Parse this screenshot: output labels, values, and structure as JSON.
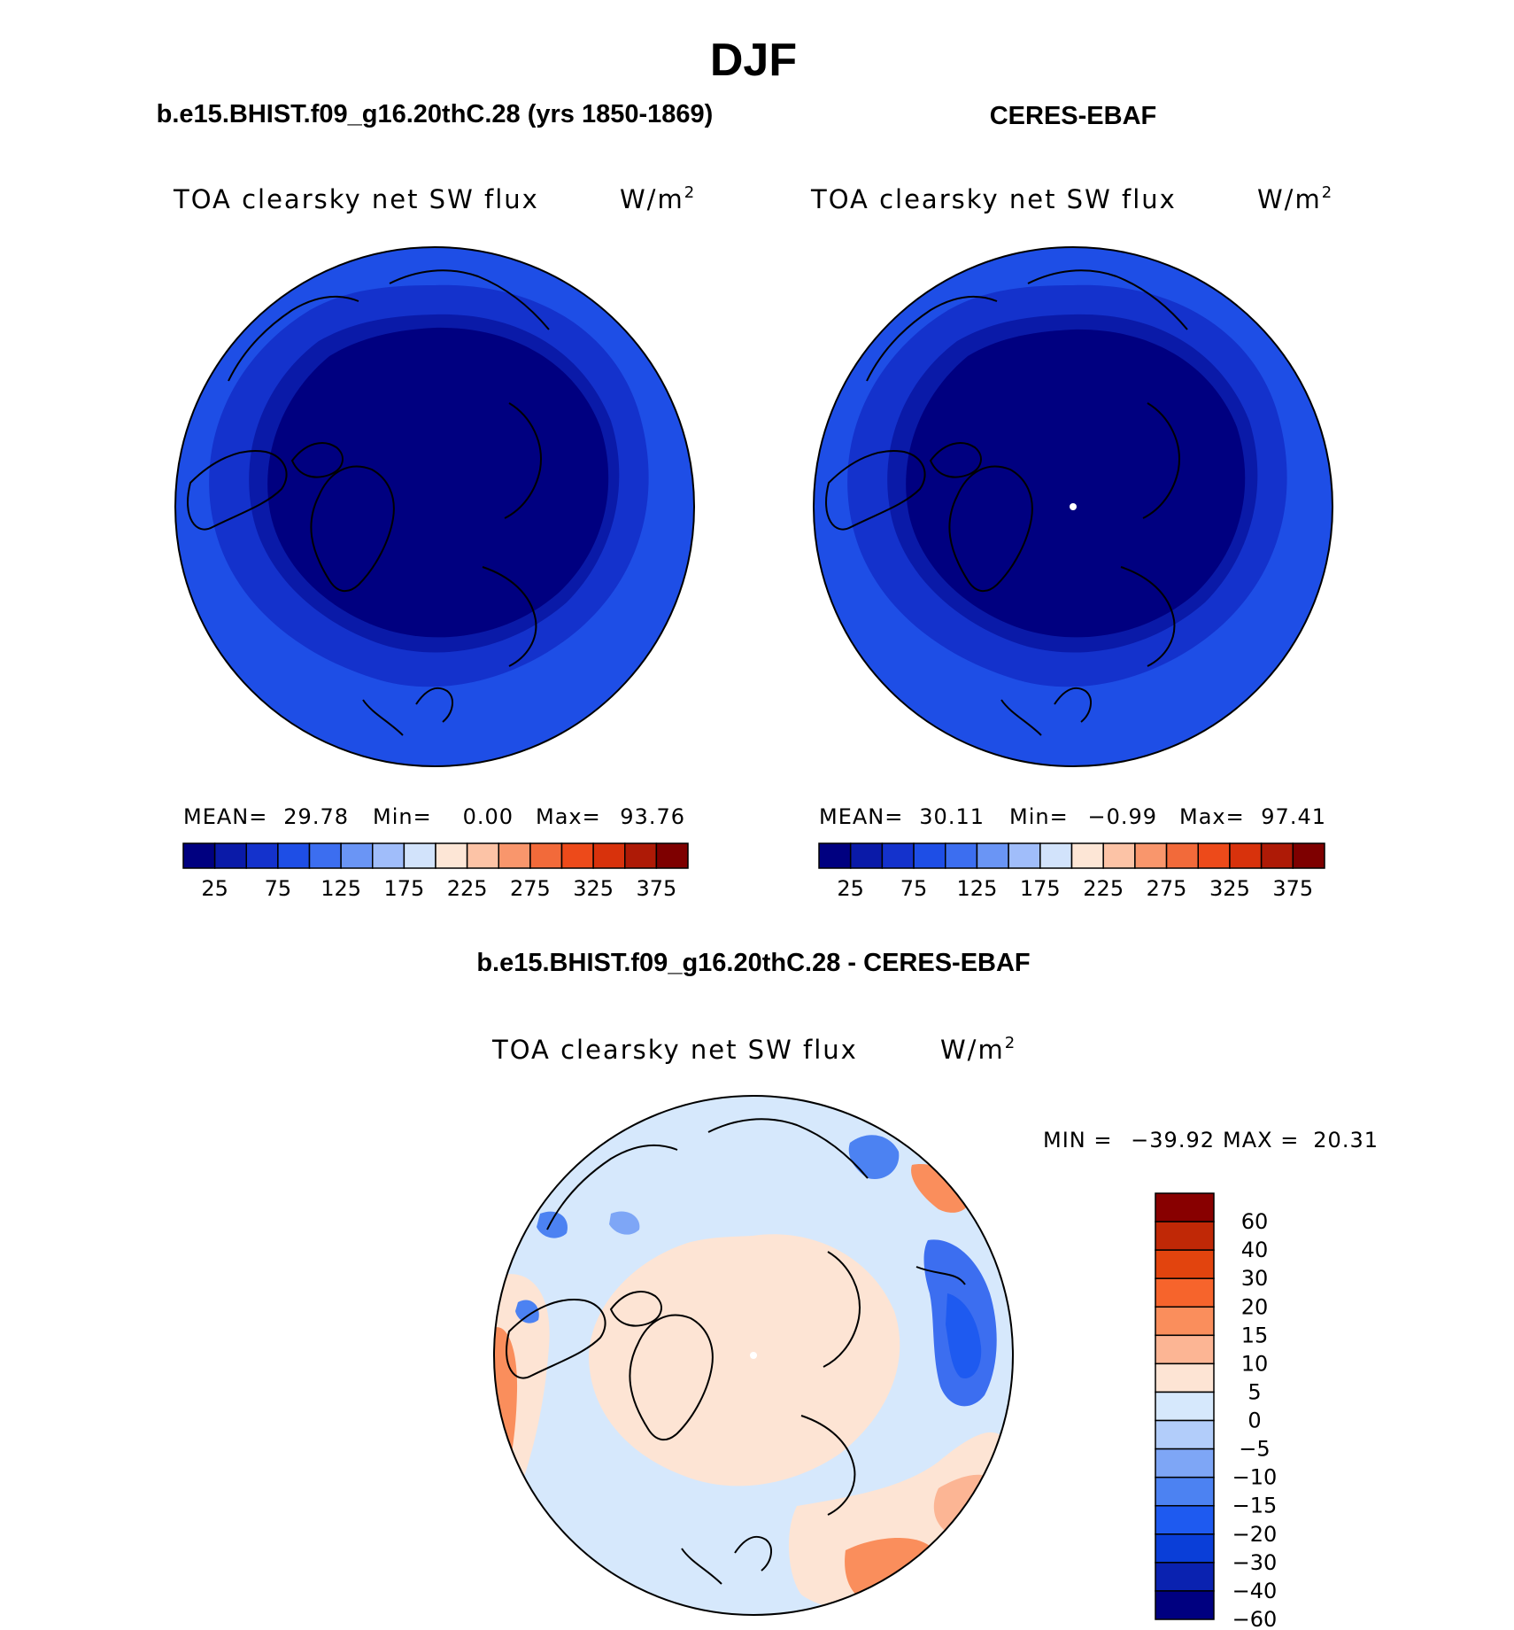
{
  "figure": {
    "title": "DJF",
    "bottom_case_title": "b.e15.BHIST.f09_g16.20thC.28 - CERES-EBAF"
  },
  "colors": {
    "abs_scale": [
      "#000080",
      "#0a1aa8",
      "#1432cc",
      "#1e4ee6",
      "#3c6ef0",
      "#6a95f5",
      "#a0bdfa",
      "#d2e3fb",
      "#fde6d6",
      "#fcc3a6",
      "#f9966c",
      "#f26a3a",
      "#ed4a1a",
      "#d8320c",
      "#ae1a06",
      "#7e0000"
    ],
    "diff_scale": [
      "#000080",
      "#0a22b0",
      "#0a3ed8",
      "#1e5af0",
      "#4c82f2",
      "#7ea6f6",
      "#b2cdfa",
      "#d6e8fc",
      "#fde4d4",
      "#fcb594",
      "#fa8e5c",
      "#f6642c",
      "#e2440e",
      "#c02806",
      "#880000"
    ]
  },
  "chart_data": [
    {
      "type": "heatmap",
      "name": "left-panel",
      "case_title": "b.e15.BHIST.f09_g16.20thC.28 (yrs 1850-1869)",
      "title": "TOA clearsky net SW flux",
      "units": "W/m",
      "units_exp": "2",
      "projection": "polar stereographic (north pole)",
      "stats": {
        "mean_label": "MEAN=",
        "mean": "29.78",
        "min_label": "Min=",
        "min": "0.00",
        "max_label": "Max=",
        "max": "93.76"
      },
      "colorbar_levels": [
        25,
        50,
        75,
        100,
        125,
        150,
        175,
        200,
        225,
        250,
        275,
        300,
        325,
        350,
        375
      ],
      "colorbar_tick_labels": [
        "25",
        "75",
        "125",
        "175",
        "225",
        "275",
        "325",
        "375"
      ],
      "field_rings": [
        {
          "band": "pole",
          "value_range": [
            0,
            25
          ]
        },
        {
          "band": "mid",
          "value_range": [
            25,
            50
          ]
        },
        {
          "band": "outer",
          "value_range": [
            50,
            75
          ]
        },
        {
          "band": "rim",
          "value_range": [
            75,
            100
          ]
        }
      ]
    },
    {
      "type": "heatmap",
      "name": "right-panel",
      "case_title": "CERES-EBAF",
      "title": "TOA clearsky net SW flux",
      "units": "W/m",
      "units_exp": "2",
      "projection": "polar stereographic (north pole)",
      "stats": {
        "mean_label": "MEAN=",
        "mean": "30.11",
        "min_label": "Min=",
        "min": "−0.99",
        "max_label": "Max=",
        "max": "97.41"
      },
      "colorbar_levels": [
        25,
        50,
        75,
        100,
        125,
        150,
        175,
        200,
        225,
        250,
        275,
        300,
        325,
        350,
        375
      ],
      "colorbar_tick_labels": [
        "25",
        "75",
        "125",
        "175",
        "225",
        "275",
        "325",
        "375"
      ],
      "field_rings": [
        {
          "band": "pole",
          "value_range": [
            0,
            25
          ]
        },
        {
          "band": "mid",
          "value_range": [
            25,
            50
          ]
        },
        {
          "band": "outer",
          "value_range": [
            50,
            75
          ]
        },
        {
          "band": "rim",
          "value_range": [
            75,
            100
          ]
        }
      ]
    },
    {
      "type": "heatmap",
      "name": "difference-panel",
      "title": "TOA clearsky net SW flux",
      "units": "W/m",
      "units_exp": "2",
      "projection": "polar stereographic (north pole)",
      "stats": {
        "min_label": "MIN =",
        "min": "−39.92",
        "max_label": "MAX =",
        "max": "20.31"
      },
      "colorbar_levels": [
        -60,
        -40,
        -30,
        -20,
        -15,
        -10,
        -5,
        0,
        5,
        10,
        15,
        20,
        30,
        40,
        60
      ],
      "colorbar_tick_labels": [
        "60",
        "40",
        "30",
        "20",
        "15",
        "10",
        "5",
        "0",
        "−5",
        "−10",
        "−15",
        "−20",
        "−30",
        "−40",
        "−60"
      ]
    }
  ]
}
